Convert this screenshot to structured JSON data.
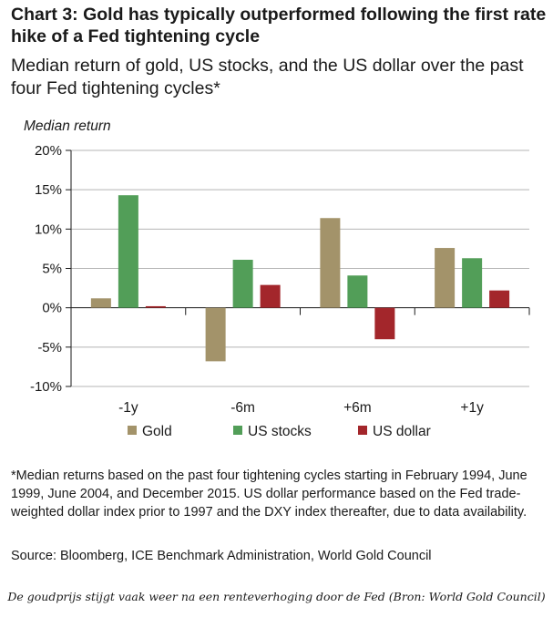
{
  "page": {
    "footnote": "*Median returns based on the past four tightening cycles starting in February 1994, June 1999, June 2004, and December 2015. US dollar performance based on the Fed trade-weighted dollar index prior to 1997 and the DXY index thereafter, due to data availability.",
    "source": "Source: Bloomberg, ICE Benchmark Administration, World Gold Council",
    "caption": "De goudprijs stijgt vaak weer na een renteverhoging door de Fed (Bron: World Gold Council)"
  },
  "chart_data": {
    "type": "bar",
    "title": "Chart 3: Gold has typically outperformed following the first rate hike of a Fed tightening cycle",
    "subtitle": "Median return of gold, US stocks, and the US dollar over the past four Fed tightening cycles*",
    "ylabel": "Median return",
    "xlabel": "",
    "categories": [
      "-1y",
      "-6m",
      "+6m",
      "+1y"
    ],
    "ylim": [
      -10,
      20
    ],
    "yticks": [
      -10,
      -5,
      0,
      5,
      10,
      15,
      20
    ],
    "ytick_labels": [
      "-10%",
      "-5%",
      "0%",
      "5%",
      "10%",
      "15%",
      "20%"
    ],
    "series": [
      {
        "name": "Gold",
        "color": "#a3936a",
        "values": [
          1.2,
          -6.8,
          11.4,
          7.6
        ]
      },
      {
        "name": "US stocks",
        "color": "#529e58",
        "values": [
          14.3,
          6.1,
          4.1,
          6.3
        ]
      },
      {
        "name": "US dollar",
        "color": "#a3262b",
        "values": [
          0.2,
          2.9,
          -4.0,
          2.2
        ]
      }
    ],
    "legend_position": "bottom",
    "grid": "horizontal"
  }
}
